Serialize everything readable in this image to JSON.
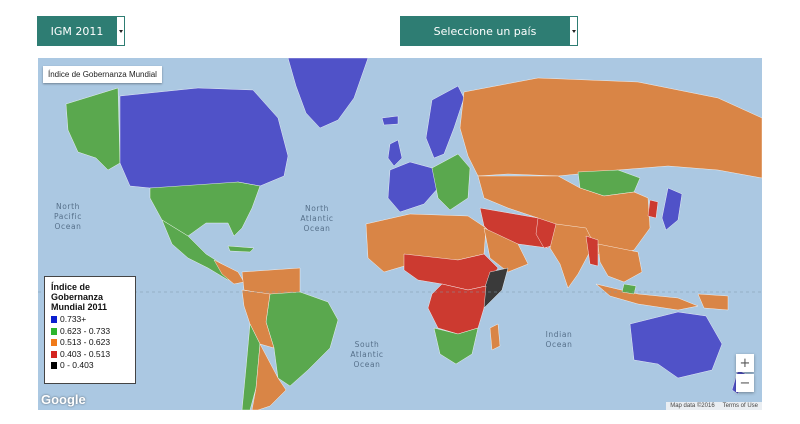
{
  "controls": {
    "year_select": {
      "selected": "IGM 2011"
    },
    "country_select": {
      "selected": "Seleccione un país"
    }
  },
  "map": {
    "title": "Índice de Gobernanza Mundial",
    "oceans": {
      "north_pacific": "North\nPacific\nOcean",
      "north_atlantic": "North\nAtlantic\nOcean",
      "south_atlantic": "South\nAtlantic\nOcean",
      "indian": "Indian\nOcean"
    },
    "legend": {
      "title": "Índice de Gobernanza Mundial 2011",
      "items": [
        {
          "label": "0.733+",
          "color": "#0b1fcf"
        },
        {
          "label": "0.623 - 0.733",
          "color": "#2db52d"
        },
        {
          "label": "0.513 - 0.623",
          "color": "#f07a1a"
        },
        {
          "label": "0.403 - 0.513",
          "color": "#d4241f"
        },
        {
          "label": "0 - 0.403",
          "color": "#000000"
        }
      ]
    },
    "fill_colors": {
      "high": "#5052c8",
      "upper_mid": "#5aa84e",
      "mid": "#d98546",
      "low": "#cc3a30",
      "lowest": "#3a3a3a",
      "ocean": "#abc8e2"
    },
    "zoom": {
      "in": "+",
      "out": "−"
    },
    "logo": "Google",
    "attribution": {
      "data": "Map data ©2016",
      "terms": "Terms of Use"
    }
  }
}
